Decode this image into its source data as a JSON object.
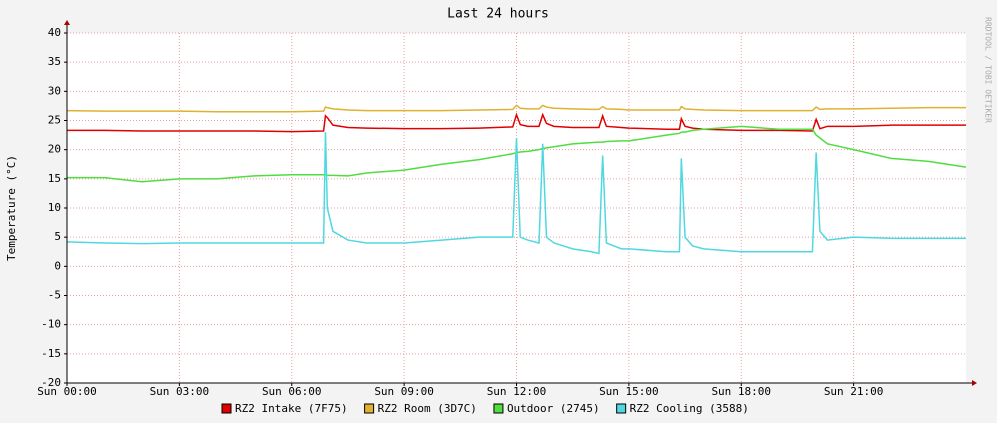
{
  "chart_data": {
    "type": "line",
    "title": "Last 24 hours",
    "y_label": "Temperature (°C)",
    "side_text": "RRDTOOL / TOBI OETIKER",
    "xlim": [
      0,
      24
    ],
    "xticks": [
      {
        "value": 0,
        "label": "Sun 00:00"
      },
      {
        "value": 3,
        "label": "Sun 03:00"
      },
      {
        "value": 6,
        "label": "Sun 06:00"
      },
      {
        "value": 9,
        "label": "Sun 09:00"
      },
      {
        "value": 12,
        "label": "Sun 12:00"
      },
      {
        "value": 15,
        "label": "Sun 15:00"
      },
      {
        "value": 18,
        "label": "Sun 18:00"
      },
      {
        "value": 21,
        "label": "Sun 21:00"
      }
    ],
    "ylim": [
      -20,
      40
    ],
    "yticks": [
      -20,
      -15,
      -10,
      -5,
      0,
      5,
      10,
      15,
      20,
      25,
      30,
      35,
      40
    ],
    "grid": true,
    "x": [
      0,
      1,
      2,
      3,
      4,
      5,
      6,
      6.85,
      6.9,
      6.95,
      7.1,
      7.5,
      8,
      9,
      10,
      11,
      11.9,
      12.0,
      12.1,
      12.3,
      12.6,
      12.7,
      12.8,
      13,
      13.5,
      14,
      14.2,
      14.3,
      14.4,
      14.8,
      15,
      16,
      16.35,
      16.4,
      16.5,
      16.7,
      17,
      18,
      19,
      19.9,
      20.0,
      20.1,
      20.3,
      21,
      22,
      23,
      24
    ],
    "series": [
      {
        "name": "RZ2 Intake (7F75)",
        "color": "#e00000",
        "values": [
          23.3,
          23.3,
          23.2,
          23.2,
          23.2,
          23.2,
          23.1,
          23.2,
          25.8,
          25.5,
          24.2,
          23.8,
          23.7,
          23.6,
          23.6,
          23.7,
          23.9,
          26,
          24.3,
          24,
          24,
          26,
          24.5,
          24,
          23.8,
          23.8,
          23.8,
          25.8,
          24,
          23.8,
          23.7,
          23.5,
          23.5,
          25.3,
          24,
          23.7,
          23.5,
          23.3,
          23.3,
          23.2,
          25.2,
          23.6,
          24,
          24,
          24.2,
          24.2,
          24.2
        ]
      },
      {
        "name": "RZ2 Room (3D7C)",
        "color": "#e0b030",
        "values": [
          26.7,
          26.6,
          26.6,
          26.6,
          26.5,
          26.5,
          26.5,
          26.6,
          27.3,
          27.2,
          27,
          26.8,
          26.7,
          26.7,
          26.7,
          26.8,
          26.9,
          27.6,
          27.1,
          27,
          27,
          27.6,
          27.3,
          27.1,
          27,
          26.9,
          26.9,
          27.4,
          27,
          26.9,
          26.8,
          26.8,
          26.8,
          27.4,
          27,
          26.9,
          26.8,
          26.7,
          26.7,
          26.7,
          27.3,
          26.9,
          27,
          27,
          27.1,
          27.2,
          27.2
        ]
      },
      {
        "name": "Outdoor (2745)",
        "color": "#50dd40",
        "values": [
          15.2,
          15.2,
          14.5,
          15,
          15,
          15.5,
          15.7,
          15.7,
          15.7,
          15.6,
          15.6,
          15.5,
          16,
          16.5,
          17.5,
          18.3,
          19.3,
          19.5,
          19.6,
          19.7,
          20,
          20.2,
          20.3,
          20.5,
          21,
          21.2,
          21.3,
          21.3,
          21.4,
          21.5,
          21.5,
          22.5,
          22.8,
          23,
          23,
          23.3,
          23.5,
          24,
          23.5,
          23.5,
          22.5,
          22,
          21,
          20,
          18.5,
          18,
          17
        ]
      },
      {
        "name": "RZ2 Cooling (3588)",
        "color": "#50d8e0",
        "values": [
          4.2,
          4,
          3.9,
          4,
          4,
          4,
          4,
          4,
          23,
          10,
          6,
          4.5,
          4,
          4,
          4.5,
          5,
          5,
          22,
          5,
          4.5,
          4,
          21,
          5,
          4,
          3,
          2.5,
          2.2,
          19,
          4,
          3,
          3,
          2.5,
          2.5,
          18.5,
          5,
          3.5,
          3,
          2.5,
          2.5,
          2.5,
          19.5,
          6,
          4.5,
          5,
          4.8,
          4.8,
          4.8
        ]
      }
    ]
  }
}
